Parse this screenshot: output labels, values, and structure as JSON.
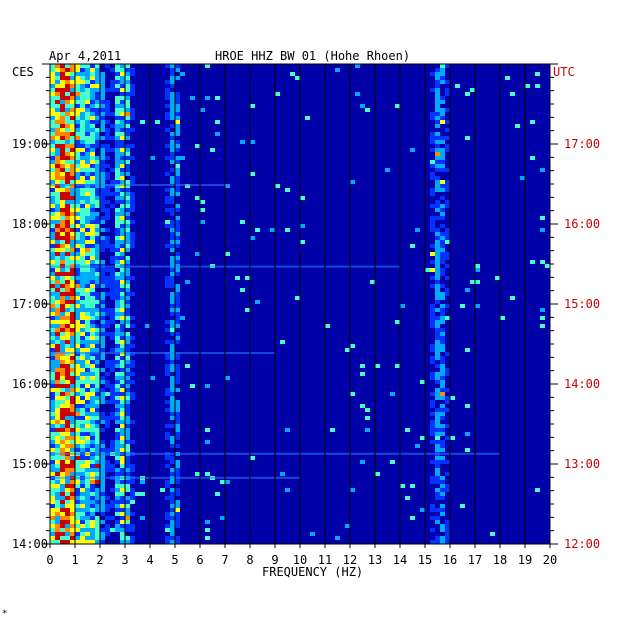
{
  "header": {
    "date": "Apr 4,2011",
    "title": "HROE HHZ BW 01 (Hohe Rhoen)",
    "left_zone": "CES",
    "right_zone": "UTC"
  },
  "footer": {
    "mark": "*"
  },
  "colors": {
    "background": "#0000a8",
    "grid": "#000000",
    "left_labels": "#000000",
    "right_labels": "#cc0000",
    "spectrum": [
      "#0000a8",
      "#0033ff",
      "#00aaff",
      "#44ffcc",
      "#ffff00",
      "#ff8800",
      "#cc0000"
    ]
  },
  "chart_data": {
    "type": "heatmap",
    "title": "HROE HHZ BW 01 (Hohe Rhoen)",
    "date": "Apr 4,2011",
    "xlabel": "FREQUENCY (HZ)",
    "xlim": [
      0,
      20
    ],
    "x_ticks": [
      "0",
      "1",
      "2",
      "3",
      "4",
      "5",
      "6",
      "7",
      "8",
      "9",
      "10",
      "11",
      "12",
      "13",
      "14",
      "15",
      "16",
      "17",
      "18",
      "19",
      "20"
    ],
    "y_left_label": "CES",
    "y_right_label": "UTC",
    "y_left_ticks": [
      "19:00",
      "18:00",
      "17:00",
      "16:00",
      "15:00",
      "14:00"
    ],
    "y_right_ticks": [
      "17:00",
      "16:00",
      "15:00",
      "14:00",
      "13:00",
      "12:00"
    ],
    "time_range_local": [
      "14:00",
      "19:50"
    ],
    "grid": true,
    "dominant_bands_hz": [
      {
        "range": [
          0.2,
          1.0
        ],
        "intensity": "high"
      },
      {
        "range": [
          1.0,
          2.0
        ],
        "intensity": "medium"
      },
      {
        "range": [
          2.8,
          3.0
        ],
        "intensity": "medium"
      },
      {
        "range": [
          4.9,
          5.0
        ],
        "intensity": "low"
      },
      {
        "range": [
          15.5,
          15.7
        ],
        "intensity": "low"
      }
    ]
  }
}
